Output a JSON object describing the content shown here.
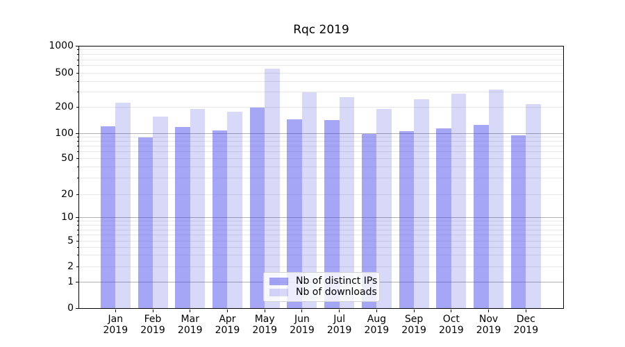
{
  "chart_data": {
    "type": "bar",
    "title": "Rqc 2019",
    "categories": [
      "Jan 2019",
      "Feb 2019",
      "Mar 2019",
      "Apr 2019",
      "May 2019",
      "Jun 2019",
      "Jul 2019",
      "Aug 2019",
      "Sep 2019",
      "Oct 2019",
      "Nov 2019",
      "Dec 2019"
    ],
    "series": [
      {
        "name": "Nb of distinct IPs",
        "color": "rgba(57,57,235,0.45)",
        "color_hex_on_white": "#a6a6f3",
        "values": [
          122,
          89,
          118,
          109,
          200,
          146,
          143,
          98,
          106,
          114,
          126,
          94
        ]
      },
      {
        "name": "Nb of downloads",
        "color": "rgba(38,38,215,0.18)",
        "color_hex_on_white": "#d8d8f7",
        "values": [
          225,
          157,
          193,
          178,
          560,
          299,
          261,
          192,
          250,
          286,
          320,
          220
        ]
      }
    ],
    "xlabel": "",
    "ylabel": "",
    "yscale": "symlog",
    "ylim": [
      0,
      1000
    ],
    "yticks": [
      0,
      1,
      2,
      5,
      10,
      20,
      50,
      100,
      200,
      500,
      1000
    ],
    "grid": true,
    "legend_position": "lower center",
    "grid_major_color": "#b0b0b0",
    "grid_minor_color": "#e7e7e7"
  }
}
